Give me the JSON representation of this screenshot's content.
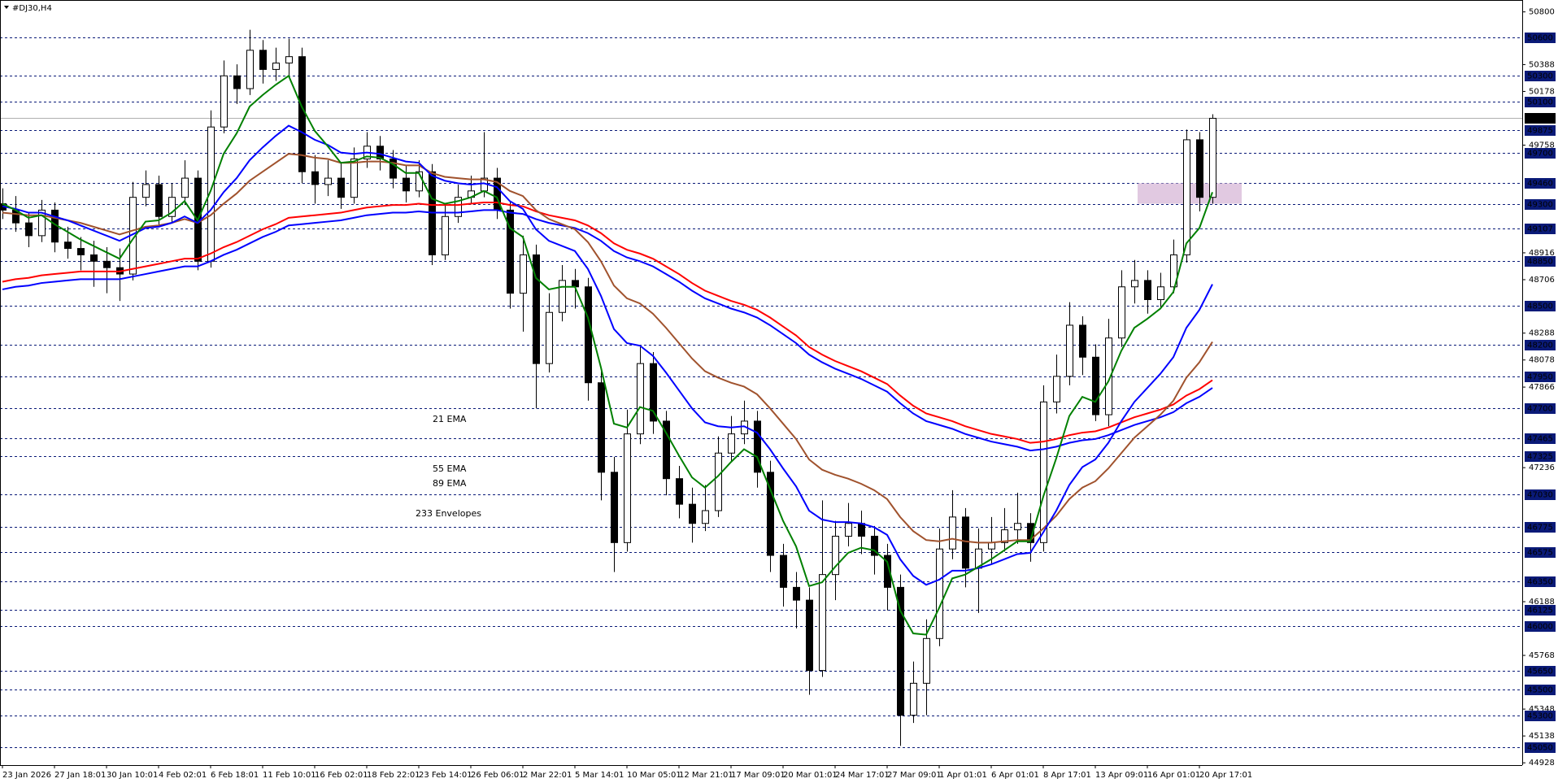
{
  "chart_data": {
    "type": "candlestick",
    "title": "#DJ30,H4",
    "categories": [
      "23 Jan 2026",
      null,
      null,
      null,
      "27 Jan 18:01",
      null,
      null,
      null,
      "30 Jan 10:01",
      null,
      null,
      null,
      "4 Feb 02:01",
      null,
      null,
      null,
      "6 Feb 18:01",
      null,
      null,
      null,
      "11 Feb 10:01",
      null,
      null,
      null,
      "16 Feb 02:01",
      null,
      null,
      null,
      "18 Feb 22:01",
      null,
      null,
      null,
      "23 Feb 14:01",
      null,
      null,
      null,
      "26 Feb 06:01",
      null,
      null,
      null,
      "2 Mar 22:01",
      null,
      null,
      null,
      "5 Mar 14:01",
      null,
      null,
      null,
      "10 Mar 05:01",
      null,
      null,
      null,
      "12 Mar 21:01",
      null,
      null,
      null,
      "17 Mar 09:01",
      null,
      null,
      null,
      "20 Mar 01:01",
      null,
      null,
      null,
      "24 Mar 17:01",
      null,
      null,
      null,
      "27 Mar 09:01",
      null,
      null,
      null,
      "1 Apr 01:01",
      null,
      null,
      null,
      "6 Apr 01:01",
      null,
      null,
      null,
      "8 Apr 17:01",
      null,
      null,
      null,
      "13 Apr 09:01",
      null,
      null,
      null,
      "16 Apr 01:01",
      null,
      null,
      null,
      "20 Apr 17:01",
      null
    ],
    "candles": [
      [
        49300,
        49420,
        49180,
        49250
      ],
      [
        49250,
        49360,
        49080,
        49150
      ],
      [
        49150,
        49230,
        48960,
        49050
      ],
      [
        49050,
        49330,
        49000,
        49250
      ],
      [
        49250,
        49310,
        48920,
        49000
      ],
      [
        49000,
        49120,
        48870,
        48950
      ],
      [
        48950,
        49040,
        48780,
        48900
      ],
      [
        48900,
        49010,
        48650,
        48850
      ],
      [
        48850,
        48960,
        48600,
        48800
      ],
      [
        48800,
        48950,
        48540,
        48750
      ],
      [
        48750,
        49470,
        48700,
        49350
      ],
      [
        49350,
        49560,
        49280,
        49450
      ],
      [
        49450,
        49520,
        49120,
        49200
      ],
      [
        49200,
        49460,
        49150,
        49350
      ],
      [
        49350,
        49640,
        49290,
        49500
      ],
      [
        49500,
        49560,
        48780,
        48850
      ],
      [
        48850,
        50030,
        48800,
        49900
      ],
      [
        49900,
        50420,
        49850,
        50300
      ],
      [
        50300,
        50390,
        50080,
        50200
      ],
      [
        50200,
        50660,
        50150,
        50500
      ],
      [
        50500,
        50580,
        50240,
        50350
      ],
      [
        50350,
        50520,
        50260,
        50400
      ],
      [
        50400,
        50590,
        50300,
        50450
      ],
      [
        50450,
        50520,
        49460,
        49550
      ],
      [
        49550,
        49680,
        49300,
        49450
      ],
      [
        49450,
        49640,
        49360,
        49500
      ],
      [
        49500,
        49620,
        49260,
        49350
      ],
      [
        49350,
        49740,
        49300,
        49650
      ],
      [
        49650,
        49860,
        49580,
        49750
      ],
      [
        49750,
        49830,
        49560,
        49650
      ],
      [
        49650,
        49720,
        49420,
        49500
      ],
      [
        49500,
        49600,
        49310,
        49400
      ],
      [
        49400,
        49640,
        49350,
        49550
      ],
      [
        49550,
        49610,
        48820,
        48900
      ],
      [
        48900,
        49290,
        48860,
        49200
      ],
      [
        49200,
        49450,
        49150,
        49350
      ],
      [
        49350,
        49520,
        49300,
        49400
      ],
      [
        49400,
        49860,
        49350,
        49500
      ],
      [
        49500,
        49580,
        49180,
        49250
      ],
      [
        49250,
        49320,
        48480,
        48600
      ],
      [
        48600,
        49050,
        48300,
        48900
      ],
      [
        48900,
        48980,
        47700,
        48050
      ],
      [
        48050,
        48600,
        47980,
        48450
      ],
      [
        48450,
        48820,
        48380,
        48700
      ],
      [
        48700,
        48790,
        48480,
        48650
      ],
      [
        48650,
        48720,
        47760,
        47900
      ],
      [
        47900,
        48000,
        46980,
        47200
      ],
      [
        47200,
        47320,
        46420,
        46650
      ],
      [
        46650,
        47690,
        46580,
        47500
      ],
      [
        47500,
        48180,
        47420,
        48050
      ],
      [
        48050,
        48140,
        47500,
        47600
      ],
      [
        47600,
        47680,
        47020,
        47150
      ],
      [
        47150,
        47250,
        46840,
        46950
      ],
      [
        46950,
        47080,
        46650,
        46800
      ],
      [
        46800,
        47100,
        46740,
        46900
      ],
      [
        46900,
        47480,
        46850,
        47350
      ],
      [
        47350,
        47640,
        47280,
        47500
      ],
      [
        47500,
        47760,
        47420,
        47600
      ],
      [
        47600,
        47680,
        47080,
        47200
      ],
      [
        47200,
        47290,
        46420,
        46550
      ],
      [
        46550,
        46640,
        46150,
        46300
      ],
      [
        46300,
        46420,
        45980,
        46200
      ],
      [
        46200,
        46300,
        45460,
        45650
      ],
      [
        45650,
        46980,
        45600,
        46400
      ],
      [
        46400,
        46820,
        46200,
        46700
      ],
      [
        46700,
        46960,
        46620,
        46800
      ],
      [
        46800,
        46900,
        46560,
        46700
      ],
      [
        46700,
        46780,
        46400,
        46550
      ],
      [
        46550,
        46640,
        46120,
        46300
      ],
      [
        46300,
        46400,
        45060,
        45300
      ],
      [
        45300,
        45720,
        45240,
        45550
      ],
      [
        45550,
        46050,
        45300,
        45900
      ],
      [
        45900,
        46760,
        45840,
        46600
      ],
      [
        46600,
        47060,
        46520,
        46850
      ],
      [
        46850,
        46920,
        46300,
        46450
      ],
      [
        46450,
        46760,
        46100,
        46600
      ],
      [
        46600,
        46850,
        46480,
        46650
      ],
      [
        46650,
        46920,
        46580,
        46750
      ],
      [
        46750,
        47040,
        46640,
        46800
      ],
      [
        46800,
        46880,
        46500,
        46650
      ],
      [
        46650,
        47880,
        46580,
        47750
      ],
      [
        47750,
        48120,
        47660,
        47950
      ],
      [
        47950,
        48530,
        47880,
        48350
      ],
      [
        48350,
        48420,
        47960,
        48100
      ],
      [
        48100,
        48200,
        47600,
        47650
      ],
      [
        47650,
        48400,
        47560,
        48250
      ],
      [
        48250,
        48780,
        48180,
        48650
      ],
      [
        48650,
        48860,
        48520,
        48700
      ],
      [
        48700,
        48780,
        48440,
        48550
      ],
      [
        48550,
        48760,
        48480,
        48650
      ],
      [
        48650,
        49020,
        48600,
        48900
      ],
      [
        48900,
        49880,
        48840,
        49800
      ],
      [
        49800,
        49860,
        49240,
        49350
      ],
      [
        49350,
        50000,
        49300,
        49968
      ]
    ],
    "ylim": [
      44910,
      50893
    ],
    "yticks": [
      50800,
      50388,
      50178,
      49758,
      48916,
      48706,
      48288,
      48078,
      47866,
      47236,
      46188,
      45768,
      45348,
      45138,
      44928
    ],
    "levels": {
      "color": "#0a1a78",
      "values": [
        50600,
        50300,
        50100,
        49875,
        49700,
        49460,
        49300,
        49107,
        48850,
        48500,
        48200,
        47950,
        47700,
        47465,
        47325,
        47030,
        46775,
        46575,
        46350,
        46125,
        46000,
        45650,
        45500,
        45300,
        45050
      ]
    },
    "last_price": {
      "value": 49968,
      "color": "#b0b0b0"
    },
    "zone": {
      "from": 49300,
      "to": 49460,
      "color": "#dcc0dc"
    },
    "series": [
      {
        "name": "21 EMA",
        "color": "#008000",
        "values": [
          49300,
          49250,
          49190,
          49210,
          49140,
          49080,
          49020,
          48970,
          48920,
          48870,
          49020,
          49160,
          49170,
          49230,
          49320,
          49170,
          49400,
          49690,
          49850,
          50060,
          50150,
          50230,
          50300,
          50060,
          49870,
          49750,
          49620,
          49630,
          49670,
          49660,
          49610,
          49540,
          49540,
          49340,
          49300,
          49320,
          49350,
          49400,
          49350,
          49110,
          49040,
          48720,
          48630,
          48650,
          48650,
          48410,
          48020,
          47580,
          47550,
          47710,
          47680,
          47510,
          47330,
          47160,
          47080,
          47170,
          47280,
          47380,
          47320,
          47070,
          46820,
          46620,
          46310,
          46340,
          46460,
          46570,
          46610,
          46590,
          46500,
          46120,
          45940,
          45930,
          46140,
          46370,
          46400,
          46460,
          46520,
          46590,
          46660,
          46660,
          47010,
          47310,
          47640,
          47790,
          47750,
          47910,
          48150,
          48330,
          48400,
          48480,
          48610,
          48990,
          49110,
          49390
        ]
      },
      {
        "name": "55 EMA",
        "color": "#0000ff",
        "values": [
          49280,
          49260,
          49230,
          49230,
          49200,
          49170,
          49130,
          49090,
          49050,
          49010,
          49060,
          49110,
          49120,
          49150,
          49200,
          49150,
          49250,
          49390,
          49500,
          49640,
          49740,
          49830,
          49910,
          49860,
          49800,
          49760,
          49700,
          49690,
          49700,
          49690,
          49660,
          49630,
          49620,
          49520,
          49480,
          49460,
          49450,
          49460,
          49430,
          49320,
          49260,
          49100,
          49010,
          48970,
          48930,
          48790,
          48580,
          48320,
          48210,
          48190,
          48110,
          47980,
          47840,
          47700,
          47590,
          47560,
          47550,
          47560,
          47510,
          47380,
          47230,
          47090,
          46900,
          46830,
          46810,
          46810,
          46800,
          46770,
          46710,
          46520,
          46390,
          46320,
          46360,
          46430,
          46430,
          46450,
          46480,
          46520,
          46560,
          46570,
          46730,
          46900,
          47100,
          47240,
          47300,
          47430,
          47600,
          47750,
          47860,
          47970,
          48100,
          48330,
          48470,
          48670
        ]
      },
      {
        "name": "89 EMA",
        "color": "#a0522d",
        "values": [
          49230,
          49220,
          49210,
          49210,
          49190,
          49170,
          49150,
          49120,
          49090,
          49060,
          49090,
          49120,
          49130,
          49150,
          49180,
          49150,
          49210,
          49300,
          49380,
          49480,
          49550,
          49620,
          49690,
          49680,
          49660,
          49650,
          49620,
          49620,
          49630,
          49630,
          49620,
          49600,
          49600,
          49540,
          49510,
          49500,
          49490,
          49490,
          49470,
          49400,
          49360,
          49250,
          49180,
          49140,
          49100,
          49000,
          48850,
          48660,
          48560,
          48520,
          48440,
          48330,
          48210,
          48090,
          47990,
          47940,
          47900,
          47870,
          47810,
          47700,
          47580,
          47460,
          47300,
          47220,
          47180,
          47150,
          47110,
          47060,
          46990,
          46850,
          46740,
          46670,
          46660,
          46680,
          46660,
          46650,
          46650,
          46660,
          46670,
          46670,
          46760,
          46860,
          46990,
          47080,
          47130,
          47230,
          47350,
          47470,
          47560,
          47650,
          47760,
          47940,
          48060,
          48220
        ]
      }
    ],
    "envelopes": {
      "name": "233 Envelopes",
      "color": "#dc143c",
      "upper_color": "#ff0000",
      "lower_color": "#0000ff",
      "upper": [
        48690,
        48710,
        48720,
        48740,
        48750,
        48760,
        48770,
        48770,
        48770,
        48770,
        48790,
        48810,
        48830,
        48850,
        48870,
        48870,
        48910,
        48960,
        49000,
        49050,
        49100,
        49140,
        49190,
        49200,
        49210,
        49220,
        49230,
        49250,
        49270,
        49280,
        49290,
        49290,
        49300,
        49290,
        49290,
        49290,
        49300,
        49310,
        49310,
        49290,
        49280,
        49240,
        49210,
        49190,
        49170,
        49130,
        49070,
        48990,
        48940,
        48910,
        48870,
        48810,
        48750,
        48680,
        48620,
        48580,
        48540,
        48510,
        48470,
        48410,
        48340,
        48270,
        48180,
        48120,
        48070,
        48030,
        47990,
        47940,
        47890,
        47800,
        47720,
        47660,
        47630,
        47600,
        47560,
        47530,
        47500,
        47480,
        47460,
        47430,
        47440,
        47460,
        47490,
        47510,
        47520,
        47550,
        47590,
        47630,
        47660,
        47690,
        47730,
        47800,
        47850,
        47920
      ],
      "lower": [
        48630,
        48650,
        48660,
        48680,
        48690,
        48700,
        48710,
        48710,
        48710,
        48710,
        48730,
        48750,
        48770,
        48790,
        48810,
        48810,
        48850,
        48900,
        48940,
        48990,
        49040,
        49080,
        49130,
        49140,
        49150,
        49160,
        49170,
        49190,
        49210,
        49220,
        49230,
        49230,
        49240,
        49230,
        49230,
        49230,
        49240,
        49250,
        49250,
        49230,
        49220,
        49180,
        49150,
        49130,
        49110,
        49070,
        49010,
        48930,
        48880,
        48850,
        48810,
        48750,
        48690,
        48620,
        48560,
        48520,
        48480,
        48450,
        48410,
        48350,
        48280,
        48210,
        48120,
        48060,
        48010,
        47970,
        47930,
        47880,
        47830,
        47740,
        47660,
        47600,
        47570,
        47540,
        47500,
        47470,
        47440,
        47420,
        47400,
        47370,
        47380,
        47400,
        47430,
        47450,
        47460,
        47490,
        47530,
        47570,
        47600,
        47630,
        47670,
        47740,
        47790,
        47860
      ]
    },
    "grid": false
  }
}
